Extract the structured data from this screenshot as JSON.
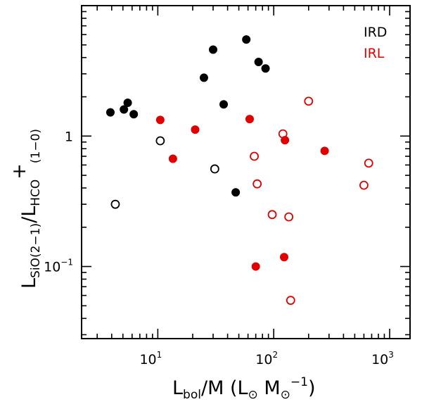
{
  "chart_data": {
    "type": "scatter",
    "xscale": "log",
    "yscale": "log",
    "xlim": [
      2.2,
      1500
    ],
    "ylim": [
      0.028,
      10
    ],
    "xlabel": {
      "main": "L",
      "sub": "bol",
      "rest": "/M  (L",
      "sun1": "⊙",
      "mid": " M",
      "sun2": "⊙",
      "sup": "−1",
      "close": ")"
    },
    "ylabel": {
      "main1": "L",
      "sub1": "SiO(2−1)",
      "slash": "/L",
      "sub2": "HCO",
      "sup2": "+",
      "sub3": "(1−0)"
    },
    "xticks": [
      {
        "base": "10",
        "exp": "1",
        "value": 10
      },
      {
        "base": "10",
        "exp": "2",
        "value": 100
      },
      {
        "base": "10",
        "exp": "3",
        "value": 1000
      }
    ],
    "yticks": [
      {
        "base": "10",
        "exp": "−1",
        "value": 0.1
      },
      {
        "base": "1",
        "exp": "",
        "value": 1
      }
    ],
    "legend": [
      {
        "label": "IRD",
        "color": "#000000"
      },
      {
        "label": "IRL",
        "color": "#e00000"
      }
    ],
    "series": [
      {
        "name": "IRD filled",
        "color": "#000000",
        "filled": true,
        "points": [
          {
            "x": 3.9,
            "y": 1.52
          },
          {
            "x": 5.1,
            "y": 1.6
          },
          {
            "x": 5.5,
            "y": 1.8
          },
          {
            "x": 6.2,
            "y": 1.47
          },
          {
            "x": 25,
            "y": 2.8
          },
          {
            "x": 30,
            "y": 4.6
          },
          {
            "x": 37,
            "y": 1.75
          },
          {
            "x": 47,
            "y": 0.37
          },
          {
            "x": 58,
            "y": 5.5
          },
          {
            "x": 74,
            "y": 3.7
          },
          {
            "x": 85,
            "y": 3.3
          }
        ]
      },
      {
        "name": "IRD open",
        "color": "#000000",
        "filled": false,
        "points": [
          {
            "x": 4.3,
            "y": 0.3
          },
          {
            "x": 10.5,
            "y": 0.92
          },
          {
            "x": 31,
            "y": 0.56
          }
        ]
      },
      {
        "name": "IRL filled",
        "color": "#e00000",
        "filled": true,
        "points": [
          {
            "x": 10.5,
            "y": 1.33
          },
          {
            "x": 13.5,
            "y": 0.67
          },
          {
            "x": 21,
            "y": 1.12
          },
          {
            "x": 62,
            "y": 1.35
          },
          {
            "x": 70,
            "y": 0.1
          },
          {
            "x": 123,
            "y": 0.118
          },
          {
            "x": 125,
            "y": 0.93
          },
          {
            "x": 275,
            "y": 0.77
          }
        ]
      },
      {
        "name": "IRL open",
        "color": "#e00000",
        "filled": false,
        "points": [
          {
            "x": 68,
            "y": 0.7
          },
          {
            "x": 72,
            "y": 0.43
          },
          {
            "x": 97,
            "y": 0.25
          },
          {
            "x": 120,
            "y": 1.04
          },
          {
            "x": 135,
            "y": 0.24
          },
          {
            "x": 140,
            "y": 0.055
          },
          {
            "x": 200,
            "y": 1.85
          },
          {
            "x": 600,
            "y": 0.42
          },
          {
            "x": 660,
            "y": 0.62
          }
        ]
      }
    ]
  }
}
